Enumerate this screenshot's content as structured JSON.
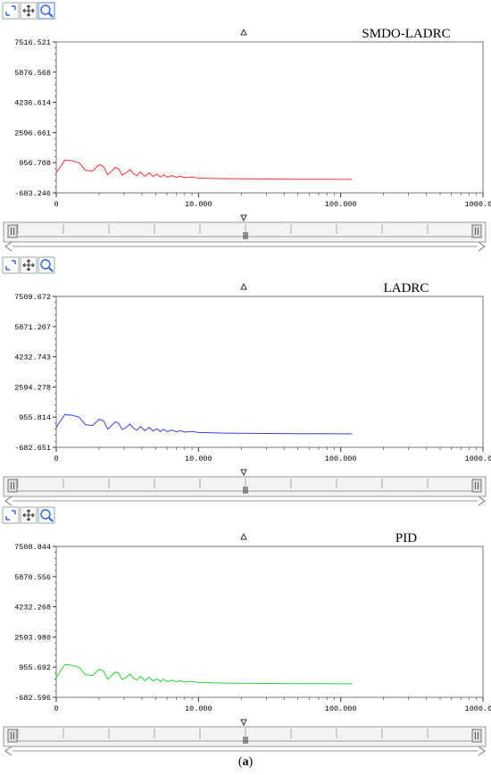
{
  "caption": {
    "open": "(",
    "letter": "a",
    "close": ")"
  },
  "chart_data": [
    {
      "type": "line",
      "title": "SMDO-LADRC",
      "color": "#e8333a",
      "x_scale": "log",
      "xlim": [
        1,
        1000
      ],
      "x_tick_labels": [
        "0",
        "10.000",
        "100.000",
        "1000.000"
      ],
      "ylim": [
        -683.246,
        7516.521
      ],
      "y_tick_labels": [
        "7516.521",
        "5876.568",
        "4236.614",
        "2596.661",
        "956.708",
        "-683.246"
      ],
      "series": [
        {
          "x": [
            1.0,
            1.06,
            1.15,
            1.3,
            1.45,
            1.6,
            1.8,
            2.0,
            2.15,
            2.3,
            2.45,
            2.6,
            2.75,
            2.9,
            3.1,
            3.3,
            3.5,
            3.7,
            3.9,
            4.2,
            4.5,
            4.8,
            5.1,
            5.4,
            5.7,
            6.0,
            6.5,
            7.0,
            7.5,
            8.0,
            9.0,
            10.0,
            12.0,
            15.0,
            20.0,
            30.0,
            50.0,
            80.0,
            120.0
          ],
          "y": [
            400,
            700,
            1100,
            1050,
            950,
            550,
            500,
            850,
            750,
            300,
            500,
            700,
            620,
            280,
            400,
            580,
            350,
            250,
            450,
            220,
            400,
            200,
            330,
            180,
            300,
            170,
            250,
            160,
            220,
            140,
            180,
            120,
            110,
            90,
            80,
            70,
            60,
            55,
            50
          ]
        }
      ]
    },
    {
      "type": "line",
      "title": "LADRC",
      "color": "#3f3fe0",
      "x_scale": "log",
      "xlim": [
        1,
        1000
      ],
      "x_tick_labels": [
        "0",
        "10.000",
        "100.000",
        "1000.000"
      ],
      "ylim": [
        -682.651,
        7509.672
      ],
      "y_tick_labels": [
        "7509.672",
        "5871.207",
        "4232.743",
        "2594.278",
        "955.814",
        "-682.651"
      ],
      "series": [
        {
          "x": [
            1.0,
            1.06,
            1.15,
            1.3,
            1.45,
            1.6,
            1.8,
            2.0,
            2.15,
            2.3,
            2.45,
            2.6,
            2.75,
            2.9,
            3.1,
            3.3,
            3.5,
            3.7,
            3.9,
            4.2,
            4.5,
            4.8,
            5.1,
            5.4,
            5.7,
            6.0,
            6.5,
            7.0,
            7.5,
            8.0,
            9.0,
            10.0,
            12.0,
            15.0,
            20.0,
            30.0,
            50.0,
            80.0,
            120.0
          ],
          "y": [
            400,
            700,
            1100,
            1050,
            950,
            550,
            500,
            850,
            750,
            300,
            500,
            700,
            620,
            280,
            400,
            580,
            350,
            250,
            450,
            220,
            400,
            200,
            330,
            180,
            300,
            170,
            250,
            160,
            220,
            140,
            180,
            120,
            110,
            90,
            80,
            70,
            60,
            55,
            50
          ]
        }
      ]
    },
    {
      "type": "line",
      "title": "PID",
      "color": "#2fcf3a",
      "x_scale": "log",
      "xlim": [
        1,
        1000
      ],
      "x_tick_labels": [
        "0",
        "10.000",
        "100.000",
        "1000.000"
      ],
      "ylim": [
        -682.596,
        7508.844
      ],
      "y_tick_labels": [
        "7508.844",
        "5870.556",
        "4232.268",
        "2593.980",
        "955.692",
        "-682.596"
      ],
      "series": [
        {
          "x": [
            1.0,
            1.06,
            1.15,
            1.3,
            1.45,
            1.6,
            1.8,
            2.0,
            2.15,
            2.3,
            2.45,
            2.6,
            2.75,
            2.9,
            3.1,
            3.3,
            3.5,
            3.7,
            3.9,
            4.2,
            4.5,
            4.8,
            5.1,
            5.4,
            5.7,
            6.0,
            6.5,
            7.0,
            7.5,
            8.0,
            9.0,
            10.0,
            12.0,
            15.0,
            20.0,
            30.0,
            50.0,
            80.0,
            120.0
          ],
          "y": [
            400,
            700,
            1100,
            1050,
            950,
            550,
            500,
            850,
            750,
            300,
            500,
            700,
            620,
            280,
            400,
            580,
            350,
            250,
            450,
            220,
            400,
            200,
            330,
            180,
            300,
            170,
            250,
            160,
            220,
            140,
            180,
            120,
            110,
            90,
            80,
            70,
            60,
            55,
            50
          ]
        }
      ]
    }
  ],
  "toolbar": {
    "icons": [
      "zoom-box-icon",
      "pan-move-icon",
      "zoom-magnifier-icon"
    ]
  }
}
